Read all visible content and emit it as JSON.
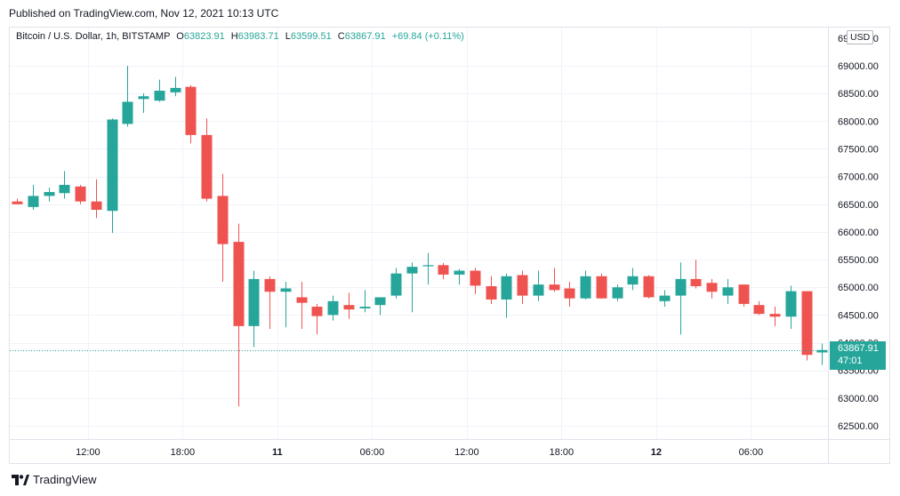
{
  "published": "Published on TradingView.com, Nov 12, 2021 10:13 UTC",
  "legend": {
    "symbol": "Bitcoin / U.S. Dollar, 1h, BITSTAMP",
    "o_label": "O",
    "o_value": "63823.91",
    "h_label": "H",
    "h_value": "63983.71",
    "l_label": "L",
    "l_value": "63599.51",
    "c_label": "C",
    "c_value": "63867.91",
    "change": "+69.84 (+0.11%)"
  },
  "currency": "USD",
  "last_price": {
    "price": "63867.91",
    "countdown": "47:01"
  },
  "brand": "TradingView",
  "colors": {
    "up": "#26a69a",
    "down": "#ef5350",
    "grid": "#f0f3fa"
  },
  "chart_data": {
    "type": "candlestick",
    "title": "Bitcoin / U.S. Dollar, 1h, BITSTAMP",
    "ylim": [
      62300,
      69350
    ],
    "y_ticks": [
      62500,
      63000,
      63500,
      64000,
      64500,
      65000,
      65500,
      66000,
      66500,
      67000,
      67500,
      68000,
      68500,
      69000
    ],
    "y_tick_labels": [
      "62500.00",
      "63000.00",
      "63500.00",
      "64000.00",
      "64500.00",
      "65000.00",
      "65500.00",
      "66000.00",
      "66500.00",
      "67000.00",
      "67500.00",
      "68000.00",
      "68500.00",
      "69000.00"
    ],
    "top_tick_partial": "69500.00",
    "x_ticks": [
      {
        "index": 4.5,
        "label": "12:00",
        "bold": false
      },
      {
        "index": 10.5,
        "label": "18:00",
        "bold": false
      },
      {
        "index": 16.5,
        "label": "11",
        "bold": true
      },
      {
        "index": 22.5,
        "label": "06:00",
        "bold": false
      },
      {
        "index": 28.5,
        "label": "12:00",
        "bold": false
      },
      {
        "index": 34.5,
        "label": "18:00",
        "bold": false
      },
      {
        "index": 40.5,
        "label": "12",
        "bold": true
      },
      {
        "index": 46.5,
        "label": "06:00",
        "bold": false
      }
    ],
    "last_price_value": 63867.91,
    "candles": [
      {
        "o": 66550,
        "h": 66600,
        "l": 66500,
        "c": 66500
      },
      {
        "o": 66450,
        "h": 66850,
        "l": 66400,
        "c": 66650
      },
      {
        "o": 66650,
        "h": 66800,
        "l": 66550,
        "c": 66720
      },
      {
        "o": 66700,
        "h": 67100,
        "l": 66600,
        "c": 66850
      },
      {
        "o": 66820,
        "h": 66850,
        "l": 66500,
        "c": 66550
      },
      {
        "o": 66550,
        "h": 66950,
        "l": 66250,
        "c": 66400
      },
      {
        "o": 66380,
        "h": 68050,
        "l": 65980,
        "c": 68030
      },
      {
        "o": 67950,
        "h": 69000,
        "l": 67900,
        "c": 68350
      },
      {
        "o": 68400,
        "h": 68500,
        "l": 68150,
        "c": 68450
      },
      {
        "o": 68370,
        "h": 68750,
        "l": 68350,
        "c": 68550
      },
      {
        "o": 68520,
        "h": 68800,
        "l": 68450,
        "c": 68600
      },
      {
        "o": 68620,
        "h": 68650,
        "l": 67600,
        "c": 67750
      },
      {
        "o": 67750,
        "h": 68050,
        "l": 66550,
        "c": 66600
      },
      {
        "o": 66650,
        "h": 67050,
        "l": 65100,
        "c": 65780
      },
      {
        "o": 65820,
        "h": 66150,
        "l": 62850,
        "c": 64300
      },
      {
        "o": 64300,
        "h": 65300,
        "l": 63920,
        "c": 65150
      },
      {
        "o": 65150,
        "h": 65200,
        "l": 64250,
        "c": 64920
      },
      {
        "o": 64920,
        "h": 65100,
        "l": 64280,
        "c": 64980
      },
      {
        "o": 64820,
        "h": 65100,
        "l": 64250,
        "c": 64720
      },
      {
        "o": 64650,
        "h": 64700,
        "l": 64150,
        "c": 64480
      },
      {
        "o": 64500,
        "h": 64850,
        "l": 64400,
        "c": 64750
      },
      {
        "o": 64680,
        "h": 64900,
        "l": 64430,
        "c": 64600
      },
      {
        "o": 64620,
        "h": 64950,
        "l": 64550,
        "c": 64650
      },
      {
        "o": 64680,
        "h": 64800,
        "l": 64500,
        "c": 64820
      },
      {
        "o": 64850,
        "h": 65350,
        "l": 64800,
        "c": 65250
      },
      {
        "o": 65250,
        "h": 65450,
        "l": 64550,
        "c": 65370
      },
      {
        "o": 65380,
        "h": 65620,
        "l": 65050,
        "c": 65400
      },
      {
        "o": 65400,
        "h": 65440,
        "l": 65150,
        "c": 65230
      },
      {
        "o": 65230,
        "h": 65330,
        "l": 65050,
        "c": 65300
      },
      {
        "o": 65300,
        "h": 65350,
        "l": 64880,
        "c": 65030
      },
      {
        "o": 65020,
        "h": 65200,
        "l": 64700,
        "c": 64780
      },
      {
        "o": 64780,
        "h": 65250,
        "l": 64450,
        "c": 65200
      },
      {
        "o": 65220,
        "h": 65300,
        "l": 64700,
        "c": 64850
      },
      {
        "o": 64850,
        "h": 65300,
        "l": 64750,
        "c": 65050
      },
      {
        "o": 65050,
        "h": 65350,
        "l": 64920,
        "c": 64950
      },
      {
        "o": 64980,
        "h": 65100,
        "l": 64650,
        "c": 64800
      },
      {
        "o": 64800,
        "h": 65300,
        "l": 64780,
        "c": 65200
      },
      {
        "o": 65200,
        "h": 65250,
        "l": 64800,
        "c": 64800
      },
      {
        "o": 64800,
        "h": 65050,
        "l": 64750,
        "c": 65000
      },
      {
        "o": 65050,
        "h": 65350,
        "l": 64950,
        "c": 65200
      },
      {
        "o": 65200,
        "h": 65220,
        "l": 64800,
        "c": 64820
      },
      {
        "o": 64750,
        "h": 64950,
        "l": 64650,
        "c": 64850
      },
      {
        "o": 64850,
        "h": 65450,
        "l": 64150,
        "c": 65150
      },
      {
        "o": 65150,
        "h": 65500,
        "l": 64980,
        "c": 65020
      },
      {
        "o": 65080,
        "h": 65150,
        "l": 64800,
        "c": 64920
      },
      {
        "o": 64850,
        "h": 65150,
        "l": 64700,
        "c": 65000
      },
      {
        "o": 65050,
        "h": 65050,
        "l": 64650,
        "c": 64700
      },
      {
        "o": 64680,
        "h": 64750,
        "l": 64500,
        "c": 64520
      },
      {
        "o": 64520,
        "h": 64650,
        "l": 64300,
        "c": 64470
      },
      {
        "o": 64470,
        "h": 65030,
        "l": 64250,
        "c": 64930
      },
      {
        "o": 64930,
        "h": 64930,
        "l": 63680,
        "c": 63780
      },
      {
        "o": 63823.91,
        "h": 63983.71,
        "l": 63599.51,
        "c": 63867.91
      }
    ]
  }
}
